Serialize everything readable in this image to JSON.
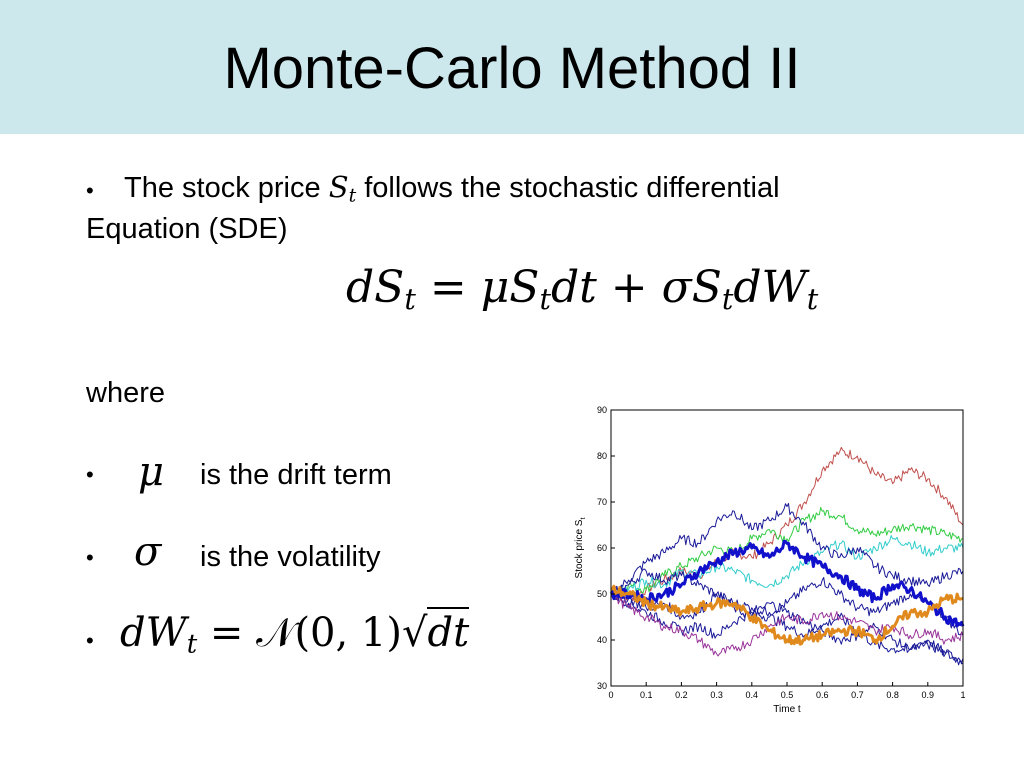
{
  "slide": {
    "title": "Monte-Carlo Method II",
    "bullet_char": "•",
    "intro_text_before": "The stock price",
    "intro_symbol": "S",
    "intro_symbol_sub": "t",
    "intro_text_after": "follows the stochastic differential",
    "intro_line2": "Equation (SDE)",
    "equation": {
      "lhs": "dS",
      "lhs_sub": "t",
      "eq": "=",
      "term1": "μS",
      "term1_sub": "t",
      "term1_tail": "dt",
      "plus": "+",
      "term2": "σS",
      "term2_sub": "t",
      "term2_tail": "dW",
      "term2_tail_sub": "t"
    },
    "where_label": "where",
    "items": [
      {
        "symbol": "μ",
        "text": "is the drift term"
      },
      {
        "symbol": "σ",
        "text": "is the volatility"
      }
    ],
    "dw_formula": {
      "lhs": "dW",
      "lhs_sub": "t",
      "eq": "=",
      "rhs": "𝒩(0, 1)",
      "sqrt_content": "dt"
    }
  },
  "chart_data": {
    "type": "line",
    "xlabel": "Time t",
    "ylabel": "Stock price S",
    "ylabel_sub": "t",
    "xlim": [
      0,
      1
    ],
    "ylim": [
      30,
      90
    ],
    "xticks": [
      0,
      0.1,
      0.2,
      0.3,
      0.4,
      0.5,
      0.6,
      0.7,
      0.8,
      0.9,
      1
    ],
    "xtick_labels": [
      "0",
      "0.1",
      "0.2",
      "0.3",
      "0.4",
      "0.5",
      "0.6",
      "0.7",
      "0.8",
      "0.9",
      "1"
    ],
    "yticks": [
      30,
      40,
      50,
      60,
      70,
      80,
      90
    ],
    "ytick_labels": [
      "30",
      "40",
      "50",
      "60",
      "70",
      "80",
      "90"
    ],
    "grid": false,
    "x": [
      0,
      0.05,
      0.1,
      0.15,
      0.2,
      0.25,
      0.3,
      0.35,
      0.4,
      0.45,
      0.5,
      0.55,
      0.6,
      0.65,
      0.7,
      0.75,
      0.8,
      0.85,
      0.9,
      0.95,
      1
    ],
    "series": [
      {
        "color": "#c0504d",
        "width": 1,
        "values": [
          50,
          49,
          51,
          53,
          55,
          54,
          57,
          59,
          58,
          61,
          65,
          70,
          77,
          81,
          80,
          76,
          74,
          77,
          75,
          71,
          65
        ]
      },
      {
        "color": "#33cc44",
        "width": 1,
        "values": [
          50,
          52,
          51,
          54,
          56,
          58,
          60,
          59,
          62,
          64,
          62,
          66,
          68,
          67,
          64,
          63,
          64,
          65,
          64,
          63,
          62
        ]
      },
      {
        "color": "#33cccc",
        "width": 1,
        "values": [
          50,
          51,
          53,
          52,
          55,
          54,
          56,
          55,
          53,
          52,
          54,
          57,
          59,
          61,
          58,
          60,
          62,
          61,
          59,
          60,
          60
        ]
      },
      {
        "color": "#1a1a99",
        "width": 1,
        "values": [
          50,
          53,
          57,
          59,
          62,
          61,
          66,
          68,
          64,
          66,
          69,
          65,
          60,
          58,
          60,
          56,
          54,
          53,
          52,
          54,
          55
        ]
      },
      {
        "color": "#1a1a99",
        "width": 1,
        "values": [
          50,
          52,
          55,
          53,
          54,
          52,
          50,
          48,
          47,
          46,
          48,
          51,
          53,
          50,
          47,
          46,
          48,
          50,
          48,
          45,
          41
        ]
      },
      {
        "color": "#1a1a99",
        "width": 1,
        "values": [
          50,
          48,
          46,
          44,
          42,
          43,
          41,
          44,
          46,
          45,
          43,
          41,
          43,
          45,
          42,
          39,
          38,
          38,
          40,
          37,
          35
        ]
      },
      {
        "color": "#1a1a99",
        "width": 1,
        "values": [
          50,
          49,
          47,
          48,
          45,
          46,
          50,
          47,
          45,
          48,
          46,
          44,
          42,
          40,
          41,
          43,
          40,
          38,
          39,
          37,
          36
        ]
      },
      {
        "color": "#993399",
        "width": 1,
        "values": [
          50,
          47,
          45,
          43,
          42,
          40,
          37,
          38,
          40,
          43,
          45,
          44,
          46,
          45,
          44,
          42,
          43,
          41,
          42,
          40,
          41
        ]
      },
      {
        "color": "#1111cc",
        "width": 3,
        "values": [
          50,
          50,
          49,
          50,
          52,
          55,
          57,
          59,
          60,
          58,
          61,
          58,
          56,
          54,
          51,
          49,
          52,
          51,
          48,
          45,
          43
        ]
      },
      {
        "color": "#e08a1e",
        "width": 3,
        "values": [
          51,
          50,
          48,
          47,
          46,
          47,
          48,
          48,
          45,
          42,
          40,
          40,
          41,
          42,
          42,
          40,
          43,
          46,
          46,
          49,
          49
        ]
      }
    ]
  }
}
